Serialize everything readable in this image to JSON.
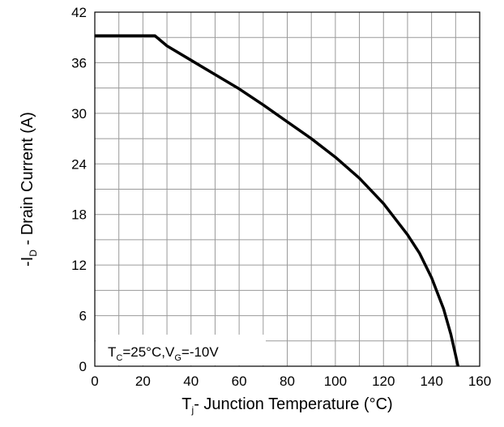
{
  "chart_data": {
    "type": "line",
    "x_axis": {
      "label": {
        "main": "T",
        "sub": "j",
        "rest": "- Junction Temperature (°C)"
      },
      "range": [
        0,
        160
      ],
      "ticks": [
        0,
        20,
        40,
        60,
        80,
        100,
        120,
        140,
        160
      ],
      "minor_step": 10
    },
    "y_axis": {
      "label": {
        "main": "-I",
        "sub": "D",
        "rest": " - Drain Current (A)"
      },
      "range": [
        0,
        42
      ],
      "ticks": [
        0,
        6,
        12,
        18,
        24,
        30,
        36,
        42
      ],
      "minor_step": 3
    },
    "grid": true,
    "annotation": {
      "parts": [
        {
          "t": "T",
          "sub": false
        },
        {
          "t": "C",
          "sub": true
        },
        {
          "t": "=25°C,V",
          "sub": false
        },
        {
          "t": "G",
          "sub": true
        },
        {
          "t": "=-10V",
          "sub": false
        }
      ],
      "position": "bottom-left"
    },
    "series": [
      {
        "x": [
          0,
          25,
          30,
          40,
          50,
          60,
          70,
          80,
          90,
          100,
          110,
          120,
          130,
          135,
          140,
          145,
          148,
          150,
          151
        ],
        "y": [
          39.2,
          39.2,
          38.0,
          36.3,
          34.6,
          32.9,
          31.0,
          29.0,
          27.0,
          24.8,
          22.3,
          19.3,
          15.6,
          13.4,
          10.5,
          6.8,
          3.8,
          1.3,
          0
        ]
      }
    ],
    "line_color": "#000000"
  }
}
